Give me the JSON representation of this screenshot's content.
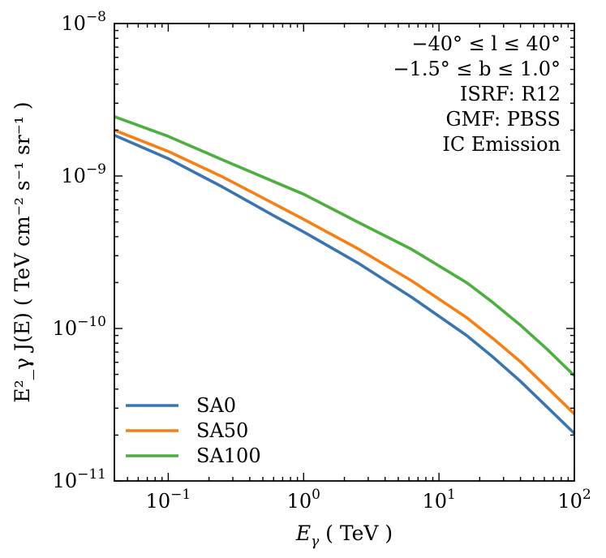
{
  "chart_data": {
    "type": "line",
    "x_scale": "log",
    "y_scale": "log",
    "xlim": [
      0.04,
      100
    ],
    "ylim": [
      1e-11,
      1e-08
    ],
    "xlabel": "E_γ ( TeV )",
    "ylabel": "E²_γ J(E) ( TeV cm⁻² s⁻¹ sr⁻¹ )",
    "x_ticks": [
      {
        "value": 0.1,
        "base": "10",
        "exp": "−1"
      },
      {
        "value": 1,
        "base": "10",
        "exp": "0"
      },
      {
        "value": 10,
        "base": "10",
        "exp": "1"
      },
      {
        "value": 100,
        "base": "10",
        "exp": "2"
      }
    ],
    "y_ticks": [
      {
        "value": 1e-11,
        "base": "10",
        "exp": "−11"
      },
      {
        "value": 1e-10,
        "base": "10",
        "exp": "−10"
      },
      {
        "value": 1e-09,
        "base": "10",
        "exp": "−9"
      },
      {
        "value": 1e-08,
        "base": "10",
        "exp": "−8"
      }
    ],
    "annotations": [
      "−40° ≤ l ≤ 40°",
      "−1.5° ≤ b ≤ 1.0°",
      "ISRF: R12",
      "GMF: PBSS",
      "IC Emission"
    ],
    "legend_position": "lower-left",
    "grid": false,
    "series": [
      {
        "name": "SA0",
        "color": "#3a75b0",
        "x": [
          0.04,
          0.1,
          0.25,
          0.6,
          1,
          2.5,
          6.3,
          16,
          25,
          40,
          63,
          100
        ],
        "y": [
          1.85e-09,
          1.3e-09,
          8.5e-10,
          5.5e-10,
          4.3e-10,
          2.7e-10,
          1.6e-10,
          9e-11,
          6.5e-11,
          4.5e-11,
          3.05e-11,
          2.05e-11
        ]
      },
      {
        "name": "SA50",
        "color": "#f77f14",
        "x": [
          0.04,
          0.1,
          0.25,
          0.6,
          1,
          2.5,
          6.3,
          16,
          25,
          40,
          63,
          100
        ],
        "y": [
          2e-09,
          1.45e-09,
          9.9e-10,
          6.6e-10,
          5.2e-10,
          3.35e-10,
          2.05e-10,
          1.18e-10,
          8.6e-11,
          6.05e-11,
          4.1e-11,
          2.75e-11
        ]
      },
      {
        "name": "SA100",
        "color": "#4daf40",
        "x": [
          0.04,
          0.1,
          0.25,
          0.6,
          1,
          2.5,
          6.3,
          16,
          25,
          40,
          63,
          100
        ],
        "y": [
          2.45e-09,
          1.82e-09,
          1.28e-09,
          9.2e-10,
          7.6e-10,
          5e-10,
          3.3e-10,
          2e-10,
          1.48e-10,
          1.05e-10,
          7.3e-11,
          4.9e-11
        ]
      }
    ]
  }
}
